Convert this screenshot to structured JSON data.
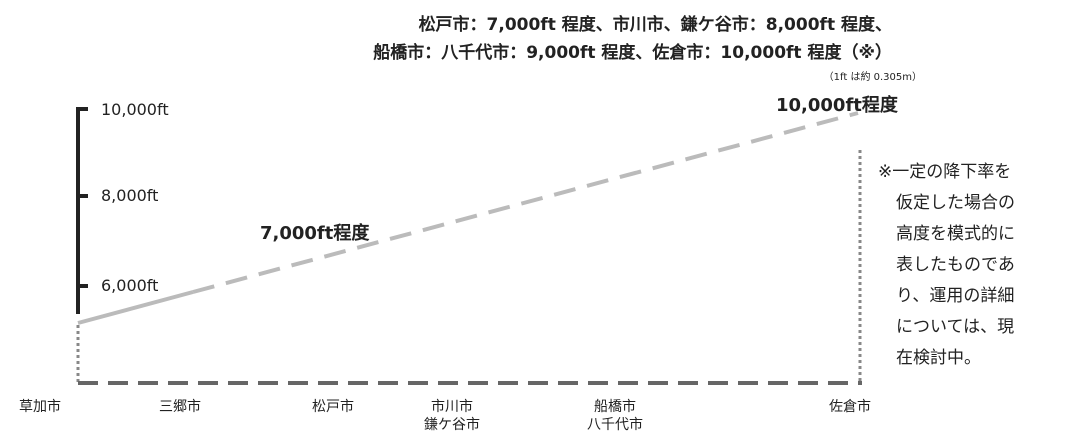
{
  "header": {
    "line1": "松戸市：7,000ft 程度、市川市、鎌ケ谷市：8,000ft 程度、",
    "line2": "船橋市：八千代市：9,000ft 程度、佐倉市：10,000ft 程度（※）",
    "unit_note": "（1ft は約 0.305m）"
  },
  "axis": {
    "ticks": [
      "10,000ft",
      "8,000ft",
      "6,000ft"
    ]
  },
  "annotations": {
    "mid": "7,000ft程度",
    "peak": "10,000ft程度"
  },
  "cities": [
    {
      "line1": "草加市",
      "line2": ""
    },
    {
      "line1": "三郷市",
      "line2": ""
    },
    {
      "line1": "松戸市",
      "line2": ""
    },
    {
      "line1": "市川市",
      "line2": "鎌ケ谷市"
    },
    {
      "line1": "船橋市",
      "line2": "八千代市"
    },
    {
      "line1": "佐倉市",
      "line2": ""
    }
  ],
  "side_note": {
    "lines": [
      "※一定の降下率を",
      "仮定した場合の",
      "高度を模式的に",
      "表したものであ",
      "り、運用の詳細",
      "については、現",
      "在検討中。"
    ]
  },
  "colors": {
    "axis": "#222222",
    "line": "#bbbbbb",
    "ground": "#666666",
    "dotted": "#888888"
  }
}
